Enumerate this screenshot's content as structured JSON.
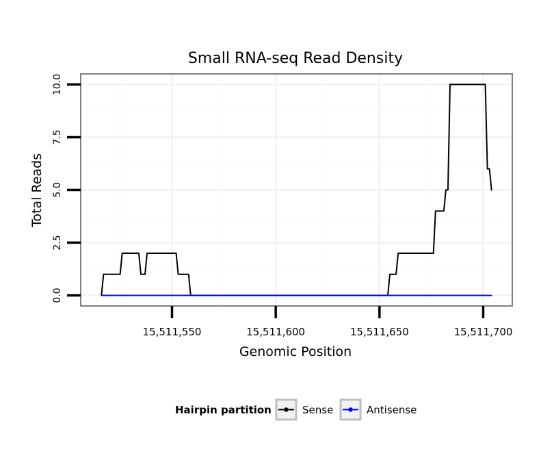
{
  "chart_data": {
    "type": "line",
    "title": "Small RNA-seq Read Density",
    "xlabel": "Genomic Position",
    "ylabel": "Total Reads",
    "xlim": [
      15511506,
      15511714
    ],
    "ylim": [
      -0.5,
      10.5
    ],
    "x_ticks": [
      15511550,
      15511600,
      15511650,
      15511700
    ],
    "x_tick_labels": [
      "15,511,550",
      "15,511,600",
      "15,511,650",
      "15,511,700"
    ],
    "y_ticks": [
      0,
      2.5,
      5,
      7.5,
      10
    ],
    "y_tick_labels": [
      "0.0",
      "2.5",
      "5.0",
      "7.5",
      "10.0"
    ],
    "grid": true,
    "legend": {
      "title": "Hairpin partition",
      "position": "bottom",
      "entries": [
        "Sense",
        "Antisense"
      ]
    },
    "series": [
      {
        "name": "Sense",
        "color": "#000000",
        "x": [
          15511516,
          15511517,
          15511525,
          15511526,
          15511534,
          15511535,
          15511537,
          15511538,
          15511552,
          15511553,
          15511558,
          15511559,
          15511654,
          15511655,
          15511658,
          15511659,
          15511676,
          15511677,
          15511681,
          15511682,
          15511683,
          15511684,
          15511701,
          15511702,
          15511703,
          15511704
        ],
        "values": [
          0,
          1,
          1,
          2,
          2,
          1,
          1,
          2,
          2,
          1,
          1,
          0,
          0,
          1,
          1,
          2,
          2,
          4,
          4,
          5,
          5,
          10,
          10,
          6,
          6,
          5
        ]
      },
      {
        "name": "Antisense",
        "color": "#0000ff",
        "x": [
          15511516,
          15511704
        ],
        "values": [
          0,
          0
        ]
      }
    ]
  }
}
